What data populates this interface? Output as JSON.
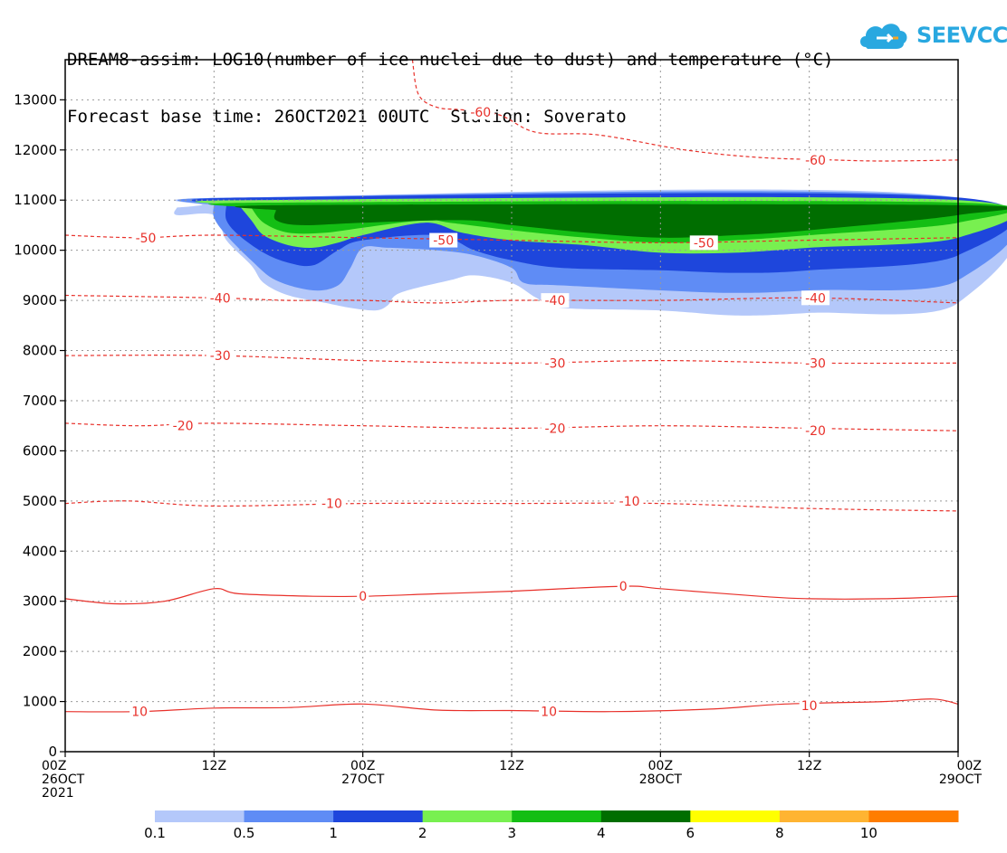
{
  "header": {
    "title_line1": "DREAM8-assim: LOG10(number of ice nuclei due to dust) and temperature (°C)",
    "title_line2": "Forecast base time: 26OCT2021 00UTC  Station: Soverato"
  },
  "logo": {
    "text": "SEEVCCC",
    "color": "#29a8e0"
  },
  "chart_data": {
    "type": "heatmap",
    "title": "DREAM8-assim: LOG10(number of ice nuclei due to dust) and temperature (°C)",
    "subtitle": "Forecast base time: 26OCT2021 00UTC  Station: Soverato",
    "xlim_hours": [
      0,
      72
    ],
    "ylim": [
      0,
      13800
    ],
    "y_ticks": [
      0,
      1000,
      2000,
      3000,
      4000,
      5000,
      6000,
      7000,
      8000,
      9000,
      10000,
      11000,
      12000,
      13000
    ],
    "x_ticks": [
      {
        "hour": 0,
        "lines": [
          "00Z",
          "26OCT",
          "2021"
        ]
      },
      {
        "hour": 12,
        "lines": [
          "12Z"
        ]
      },
      {
        "hour": 24,
        "lines": [
          "00Z",
          "27OCT"
        ]
      },
      {
        "hour": 36,
        "lines": [
          "12Z"
        ]
      },
      {
        "hour": 48,
        "lines": [
          "00Z",
          "28OCT"
        ]
      },
      {
        "hour": 60,
        "lines": [
          "12Z"
        ]
      },
      {
        "hour": 72,
        "lines": [
          "00Z",
          "29OCT"
        ]
      }
    ],
    "grid": true,
    "colorbar": {
      "labels": [
        "0.1",
        "0.5",
        "1",
        "2",
        "3",
        "4",
        "6",
        "8",
        "10"
      ],
      "colors": [
        "#b4c8fa",
        "#5f8cf5",
        "#1e46dc",
        "#78f050",
        "#14be14",
        "#006e00",
        "#ffff00",
        "#ffb432",
        "#ff7d00"
      ]
    },
    "dust_fields": [
      {
        "level": "0.1",
        "color": "#b4c8fa",
        "polygon": [
          [
            9,
            10850
          ],
          [
            11,
            10900
          ],
          [
            14,
            11050
          ],
          [
            72,
            11050
          ],
          [
            72,
            8950
          ],
          [
            60,
            8750
          ],
          [
            54,
            8700
          ],
          [
            48,
            8800
          ],
          [
            40,
            8850
          ],
          [
            38,
            9050
          ],
          [
            36,
            9350
          ],
          [
            33,
            9500
          ],
          [
            31,
            9400
          ],
          [
            27,
            9150
          ],
          [
            26,
            8900
          ],
          [
            25,
            8800
          ],
          [
            23,
            8850
          ],
          [
            21,
            8950
          ],
          [
            18,
            9100
          ],
          [
            16,
            9350
          ],
          [
            15,
            9700
          ],
          [
            13,
            10200
          ],
          [
            12,
            10700
          ],
          [
            9,
            10700
          ]
        ]
      },
      {
        "level": "0.5",
        "color": "#5f8cf5",
        "polygon": [
          [
            12,
            10900
          ],
          [
            14,
            11050
          ],
          [
            72,
            11050
          ],
          [
            72,
            9400
          ],
          [
            60,
            9200
          ],
          [
            54,
            9150
          ],
          [
            48,
            9200
          ],
          [
            40,
            9300
          ],
          [
            37,
            9350
          ],
          [
            36,
            9650
          ],
          [
            33,
            9900
          ],
          [
            30,
            10000
          ],
          [
            26,
            10050
          ],
          [
            24,
            10050
          ],
          [
            23,
            9650
          ],
          [
            22,
            9300
          ],
          [
            20,
            9200
          ],
          [
            17,
            9400
          ],
          [
            15,
            9800
          ],
          [
            13,
            10300
          ],
          [
            12,
            10650
          ]
        ]
      },
      {
        "level": "1",
        "color": "#1e46dc",
        "polygon": [
          [
            13,
            10900
          ],
          [
            15,
            11050
          ],
          [
            72,
            11050
          ],
          [
            72,
            9900
          ],
          [
            60,
            9600
          ],
          [
            54,
            9550
          ],
          [
            48,
            9600
          ],
          [
            40,
            9650
          ],
          [
            36,
            9800
          ],
          [
            33,
            10000
          ],
          [
            30,
            10300
          ],
          [
            24,
            10200
          ],
          [
            22,
            10000
          ],
          [
            20,
            9700
          ],
          [
            18,
            9750
          ],
          [
            16,
            9950
          ],
          [
            14,
            10300
          ],
          [
            13,
            10600
          ]
        ]
      },
      {
        "level": "2",
        "color": "#78f050",
        "polygon": [
          [
            14,
            10900
          ],
          [
            15,
            11000
          ],
          [
            72,
            11000
          ],
          [
            72,
            10250
          ],
          [
            60,
            10050
          ],
          [
            54,
            9950
          ],
          [
            48,
            9950
          ],
          [
            42,
            10100
          ],
          [
            36,
            10200
          ],
          [
            32,
            10350
          ],
          [
            29,
            10550
          ],
          [
            24,
            10300
          ],
          [
            22,
            10150
          ],
          [
            20,
            10050
          ],
          [
            18,
            10100
          ],
          [
            16,
            10300
          ],
          [
            15,
            10600
          ]
        ]
      },
      {
        "level": "3",
        "color": "#14be14",
        "polygon": [
          [
            15,
            10850
          ],
          [
            16,
            10950
          ],
          [
            72,
            10950
          ],
          [
            72,
            10550
          ],
          [
            60,
            10300
          ],
          [
            54,
            10200
          ],
          [
            48,
            10150
          ],
          [
            42,
            10250
          ],
          [
            36,
            10400
          ],
          [
            31,
            10550
          ],
          [
            29,
            10600
          ],
          [
            24,
            10450
          ],
          [
            21,
            10350
          ],
          [
            18,
            10350
          ],
          [
            16,
            10550
          ]
        ]
      },
      {
        "level": "4",
        "color": "#006e00",
        "polygon": [
          [
            17,
            10800
          ],
          [
            18,
            10900
          ],
          [
            72,
            10900
          ],
          [
            72,
            10700
          ],
          [
            60,
            10400
          ],
          [
            54,
            10300
          ],
          [
            48,
            10250
          ],
          [
            42,
            10350
          ],
          [
            36,
            10500
          ],
          [
            32,
            10600
          ],
          [
            24,
            10550
          ],
          [
            19,
            10500
          ],
          [
            17,
            10600
          ]
        ]
      }
    ],
    "temperature_contours": [
      {
        "label": "-60",
        "linestyle": "dashed",
        "points": [
          [
            28,
            13800
          ],
          [
            28.5,
            13100
          ],
          [
            30,
            12850
          ],
          [
            32,
            12800
          ],
          [
            35,
            12700
          ],
          [
            38,
            12350
          ],
          [
            43,
            12300
          ],
          [
            50,
            12000
          ],
          [
            56,
            11850
          ],
          [
            62,
            11800
          ],
          [
            66,
            11780
          ],
          [
            72,
            11800
          ]
        ],
        "label_at": [
          33.5,
          12750
        ]
      },
      {
        "label": "-60",
        "linestyle": "dashed",
        "points": [],
        "label_at": [
          60.5,
          11800
        ]
      },
      {
        "label": "-50",
        "linestyle": "dashed",
        "points": [
          [
            0,
            10300
          ],
          [
            6,
            10250
          ],
          [
            12,
            10300
          ],
          [
            24,
            10250
          ],
          [
            36,
            10200
          ],
          [
            48,
            10150
          ],
          [
            60,
            10200
          ],
          [
            72,
            10250
          ]
        ],
        "label_at": [
          6.5,
          10250
        ]
      },
      {
        "label": "-50",
        "linestyle": "dashed",
        "points": [],
        "label_at": [
          30.5,
          10200
        ]
      },
      {
        "label": "-50",
        "linestyle": "dashed",
        "points": [],
        "label_at": [
          51.5,
          10150
        ]
      },
      {
        "label": "-40",
        "linestyle": "dashed",
        "points": [
          [
            0,
            9100
          ],
          [
            12,
            9050
          ],
          [
            18,
            9000
          ],
          [
            24,
            9000
          ],
          [
            30,
            8950
          ],
          [
            36,
            9000
          ],
          [
            48,
            9000
          ],
          [
            60,
            9050
          ],
          [
            72,
            8950
          ]
        ],
        "label_at": [
          12.5,
          9050
        ]
      },
      {
        "label": "-40",
        "linestyle": "dashed",
        "points": [],
        "label_at": [
          39.5,
          9000
        ]
      },
      {
        "label": "-40",
        "linestyle": "dashed",
        "points": [],
        "label_at": [
          60.5,
          9050
        ]
      },
      {
        "label": "-30",
        "linestyle": "dashed",
        "points": [
          [
            0,
            7900
          ],
          [
            12,
            7900
          ],
          [
            24,
            7800
          ],
          [
            36,
            7750
          ],
          [
            48,
            7800
          ],
          [
            60,
            7750
          ],
          [
            72,
            7750
          ]
        ],
        "label_at": [
          12.5,
          7900
        ]
      },
      {
        "label": "-30",
        "linestyle": "dashed",
        "points": [],
        "label_at": [
          39.5,
          7750
        ]
      },
      {
        "label": "-30",
        "linestyle": "dashed",
        "points": [],
        "label_at": [
          60.5,
          7750
        ]
      },
      {
        "label": "-20",
        "linestyle": "dashed",
        "points": [
          [
            0,
            6550
          ],
          [
            6,
            6500
          ],
          [
            12,
            6550
          ],
          [
            24,
            6500
          ],
          [
            36,
            6450
          ],
          [
            48,
            6500
          ],
          [
            60,
            6450
          ],
          [
            72,
            6400
          ]
        ],
        "label_at": [
          9.5,
          6500
        ]
      },
      {
        "label": "-20",
        "linestyle": "dashed",
        "points": [],
        "label_at": [
          39.5,
          6450
        ]
      },
      {
        "label": "-20",
        "linestyle": "dashed",
        "points": [],
        "label_at": [
          60.5,
          6400
        ]
      },
      {
        "label": "-10",
        "linestyle": "dashed",
        "points": [
          [
            0,
            4950
          ],
          [
            5,
            5000
          ],
          [
            12,
            4900
          ],
          [
            24,
            4950
          ],
          [
            36,
            4950
          ],
          [
            48,
            4950
          ],
          [
            60,
            4850
          ],
          [
            72,
            4800
          ]
        ],
        "label_at": [
          21.5,
          4950
        ]
      },
      {
        "label": "-10",
        "linestyle": "dashed",
        "points": [],
        "label_at": [
          45.5,
          5000
        ]
      },
      {
        "label": "0",
        "linestyle": "solid",
        "points": [
          [
            0,
            3050
          ],
          [
            4,
            2950
          ],
          [
            8,
            3000
          ],
          [
            12,
            3250
          ],
          [
            14,
            3150
          ],
          [
            20,
            3100
          ],
          [
            24,
            3100
          ],
          [
            30,
            3150
          ],
          [
            36,
            3200
          ],
          [
            45,
            3300
          ],
          [
            48,
            3250
          ],
          [
            56,
            3100
          ],
          [
            60,
            3050
          ],
          [
            66,
            3050
          ],
          [
            72,
            3100
          ]
        ],
        "label_at": [
          24,
          3100
        ]
      },
      {
        "label": "0",
        "linestyle": "solid",
        "points": [],
        "label_at": [
          45,
          3300
        ]
      },
      {
        "label": "10",
        "linestyle": "solid",
        "points": [
          [
            0,
            800
          ],
          [
            6,
            800
          ],
          [
            12,
            870
          ],
          [
            18,
            880
          ],
          [
            24,
            950
          ],
          [
            30,
            830
          ],
          [
            36,
            820
          ],
          [
            44,
            800
          ],
          [
            52,
            850
          ],
          [
            58,
            950
          ],
          [
            66,
            1000
          ],
          [
            70,
            1050
          ],
          [
            72,
            950
          ]
        ],
        "label_at": [
          6,
          800
        ]
      },
      {
        "label": "10",
        "linestyle": "solid",
        "points": [],
        "label_at": [
          39,
          800
        ]
      },
      {
        "label": "10",
        "linestyle": "solid",
        "points": [],
        "label_at": [
          60,
          920
        ]
      }
    ]
  }
}
